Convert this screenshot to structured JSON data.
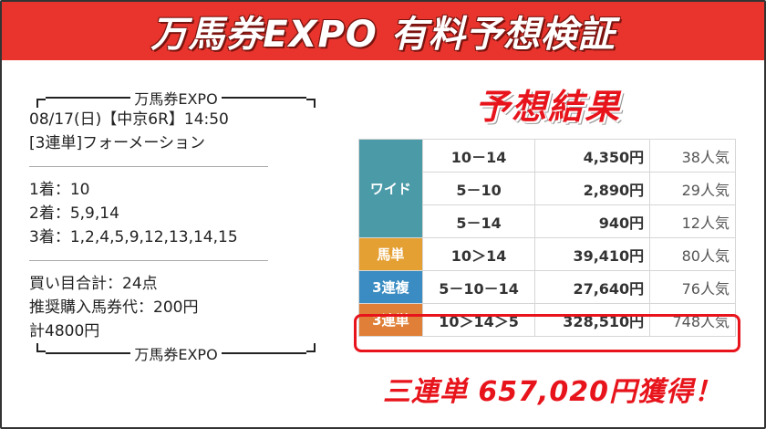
{
  "banner": {
    "title": "万馬券EXPO 有料予想検証"
  },
  "ticket": {
    "frame_label_top": "万馬券EXPO",
    "race_line": "08/17(日)【中京6R】14:50",
    "bet_type_line": "[3連単]フォーメーション",
    "first_line": "1着：10",
    "second_line": "2着：5,9,14",
    "third_line": "3着：1,2,4,5,9,12,13,14,15",
    "total_points_line": "買い目合計：24点",
    "recommended_line": "推奨購入馬券代：200円",
    "total_cost_line": "計4800円",
    "frame_label_bottom": "万馬券EXPO"
  },
  "results": {
    "title": "予想結果",
    "wide": {
      "category": "ワイド",
      "rows": [
        {
          "combo": "10－14",
          "payout": "4,350円",
          "popularity": "38人気"
        },
        {
          "combo": "5－10",
          "payout": "2,890円",
          "popularity": "29人気"
        },
        {
          "combo": "5－14",
          "payout": "940円",
          "popularity": "12人気"
        }
      ]
    },
    "umatan": {
      "category": "馬単",
      "combo": "10＞14",
      "payout": "39,410円",
      "popularity": "80人気"
    },
    "sanrenpuku": {
      "category": "3連複",
      "combo": "5－10－14",
      "payout": "27,640円",
      "popularity": "76人気"
    },
    "sanrentan": {
      "category": "3連単",
      "combo": "10＞14＞5",
      "payout": "328,510円",
      "popularity": "748人気"
    },
    "win_text": "三連単 657,020円獲得！"
  },
  "colors": {
    "banner": "#e8342c",
    "accent_red": "#e8141c",
    "wide": "#4a9aa8",
    "umatan": "#e5a033",
    "sanrenpuku": "#3b8cc2",
    "sanrentan": "#e08038"
  }
}
